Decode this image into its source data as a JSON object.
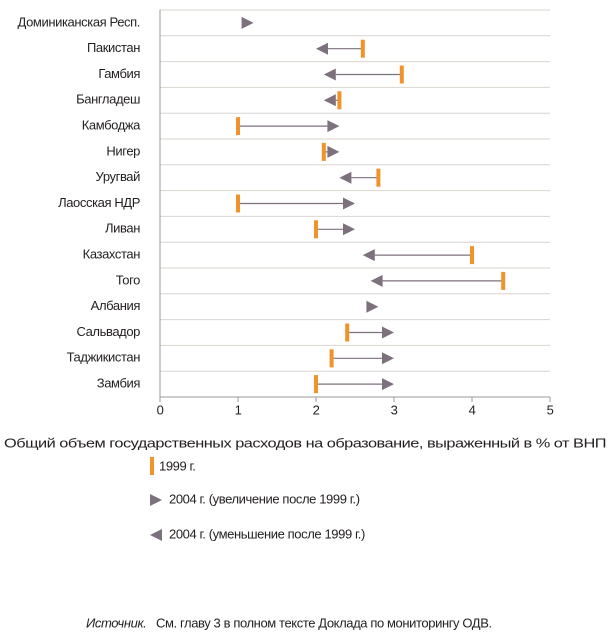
{
  "chart_data": {
    "type": "arrow-dumbbell",
    "categories": [
      "Доминиканская Респ.",
      "Пакистан",
      "Гамбия",
      "Бангладеш",
      "Камбоджа",
      "Нигер",
      "Уругвай",
      "Лаосская НДР",
      "Ливан",
      "Казахстан",
      "Того",
      "Албания",
      "Сальвадор",
      "Таджикистан",
      "Замбия"
    ],
    "series": [
      {
        "color": "#f0932b",
        "values": [
          null,
          2.6,
          3.1,
          2.3,
          1.0,
          2.1,
          2.8,
          1.0,
          2.0,
          4.0,
          4.4,
          null,
          2.4,
          2.2,
          2.0
        ]
      },
      {
        "color": "#7d717d",
        "values": [
          1.2,
          2.0,
          2.1,
          2.1,
          2.3,
          2.3,
          2.3,
          2.5,
          2.5,
          2.6,
          2.7,
          2.8,
          3.0,
          3.0,
          3.0
        ]
      }
    ],
    "legend": [
      "1999 г.",
      "2004 г. (увеличение после 1999 г.)",
      "2004 г. (уменьшение после 1999 г.)"
    ],
    "xlim": [
      0,
      5
    ],
    "xticks": [
      0,
      1,
      2,
      3,
      4,
      5
    ],
    "x_label": "Общий объем государственных расходов на образование, выраженный в % от ВНП",
    "source_label": "Источник.",
    "source_text": "См. главу 3 в полном тексте Доклада по мониторингу ОДВ.",
    "grid": true
  }
}
